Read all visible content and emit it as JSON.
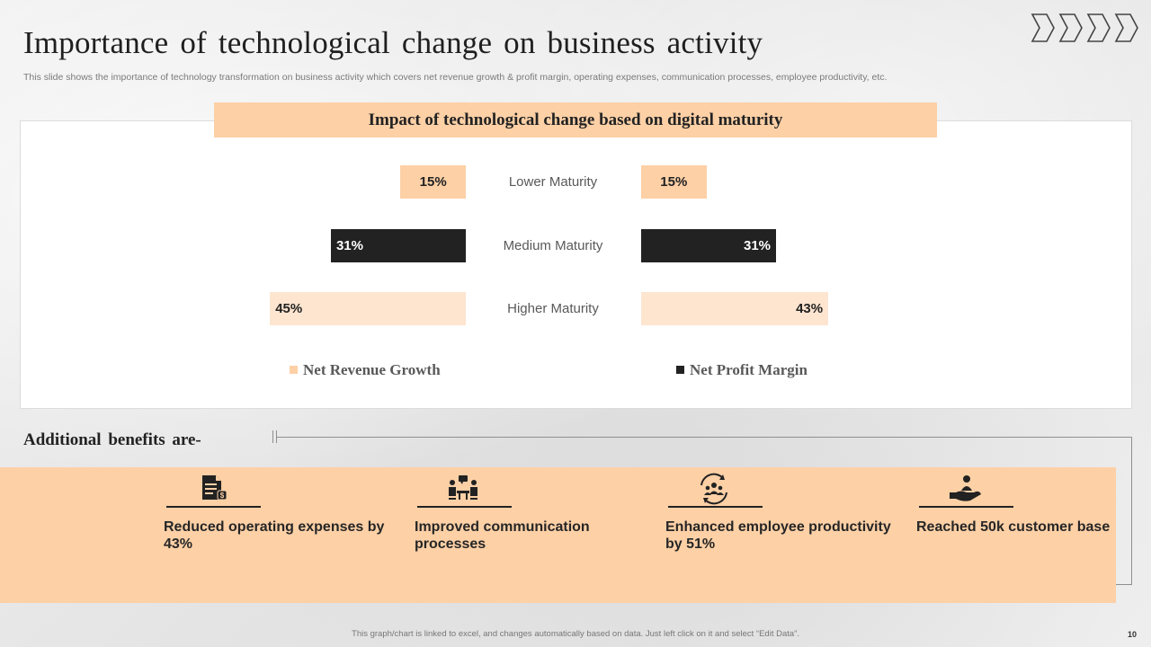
{
  "slide": {
    "title": "Importance of technological change on business activity",
    "subtitle": "This slide shows the importance of technology transformation on business activity which covers net revenue growth & profit margin, operating expenses, communication processes, employee productivity, etc.",
    "footnote": "This graph/chart is linked to excel, and changes automatically based on data. Just left click on it and select “Edit Data”.",
    "page_number": "10"
  },
  "colors": {
    "accent_peach": "#fdd0a6",
    "light_peach": "#fde5d0",
    "dark": "#222222"
  },
  "chart_data": {
    "type": "bar",
    "title": "Impact of technological change based on digital maturity",
    "categories": [
      "Lower Maturity",
      "Medium Maturity",
      "Higher Maturity"
    ],
    "series": [
      {
        "name": "Net Revenue Growth",
        "values": [
          15,
          31,
          45
        ],
        "labels": [
          "15%",
          "31%",
          "45%"
        ]
      },
      {
        "name": "Net Profit Margin",
        "values": [
          15,
          31,
          43
        ],
        "labels": [
          "15%",
          "31%",
          "43%"
        ]
      }
    ],
    "unit": "%",
    "layout": "butterfly",
    "legend_position": "bottom"
  },
  "benefits": {
    "heading": "Additional  benefits are-",
    "items": [
      {
        "icon": "document-money-icon",
        "text": "Reduced operating expenses by 43%"
      },
      {
        "icon": "meeting-icon",
        "text": "Improved communication processes"
      },
      {
        "icon": "team-cycle-icon",
        "text": "Enhanced employee productivity by 51%"
      },
      {
        "icon": "hand-user-icon",
        "text": "Reached 50k customer base"
      }
    ]
  }
}
